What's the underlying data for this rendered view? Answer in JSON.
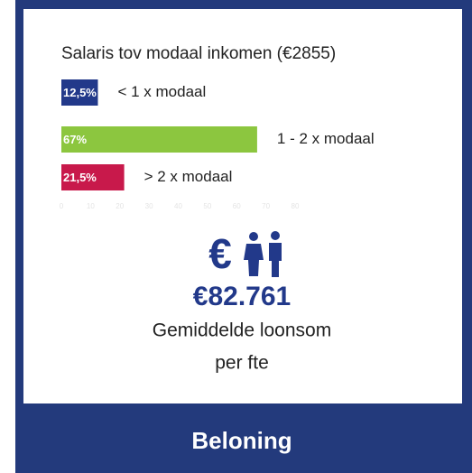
{
  "chart_data": {
    "type": "bar",
    "orientation": "horizontal",
    "title": "Salaris tov modaal inkomen (€2855)",
    "categories": [
      "< 1 x modaal",
      "1 - 2  x modaal",
      "> 2 x modaal"
    ],
    "values": [
      12.5,
      67,
      21.5
    ],
    "value_labels": [
      "12,5%",
      "67%",
      "21,5%"
    ],
    "colors": [
      "#22398a",
      "#8cc63f",
      "#c8194b"
    ],
    "xlim": [
      0,
      80
    ],
    "xticks": [
      0,
      10,
      20,
      30,
      40,
      50,
      60,
      70,
      80
    ]
  },
  "stat": {
    "icon": "€",
    "value": "€82.761",
    "label_lines": [
      "Gemiddelde loonsom",
      "per fte"
    ]
  },
  "footer": {
    "title": "Beloning"
  }
}
